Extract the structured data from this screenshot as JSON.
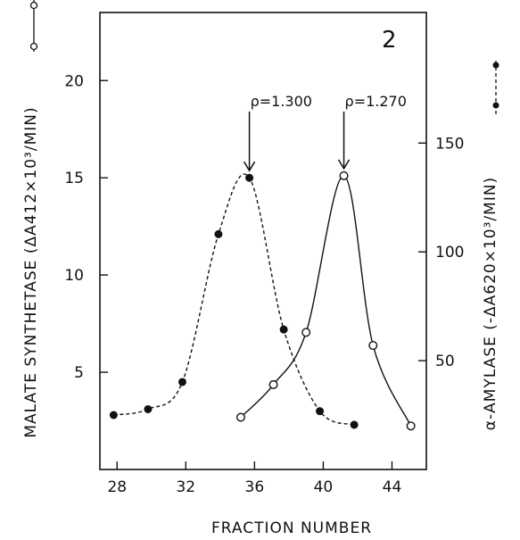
{
  "chart_data": {
    "type": "line",
    "panel_label": "2",
    "xlabel": "FRACTION NUMBER",
    "y_left_label": "MALATE SYNTHETASE (ΔA412×10³/MIN)",
    "y_right_label": "α-AMYLASE (-ΔA620×10³/MIN)",
    "x_ticks": [
      28,
      32,
      36,
      40,
      44
    ],
    "y_left_ticks": [
      5,
      10,
      15,
      20
    ],
    "y_right_ticks": [
      50,
      100,
      150
    ],
    "xlim": [
      27,
      46
    ],
    "y_left_lim": [
      0,
      23.5
    ],
    "y_right_lim": [
      0,
      210
    ],
    "grid": false,
    "legend": "axis markers",
    "series": [
      {
        "name": "MALATE SYNTHETASE",
        "axis": "left",
        "marker": "filled-circle",
        "line": "dashed",
        "x": [
          27.8,
          29.8,
          31.8,
          33.9,
          35.7,
          37.7,
          39.8,
          41.8
        ],
        "y": [
          2.8,
          3.1,
          4.5,
          12.1,
          15.0,
          7.2,
          3.0,
          2.3
        ]
      },
      {
        "name": "α-AMYLASE",
        "axis": "right",
        "marker": "open-circle",
        "line": "solid",
        "x": [
          35.2,
          37.1,
          39.0,
          41.2,
          42.9,
          45.1
        ],
        "y": [
          24,
          39,
          63,
          135,
          57,
          20
        ]
      }
    ],
    "annotations": [
      {
        "text": "ρ=1.300",
        "x": 35.7,
        "axis": "left",
        "target_y": 15.0
      },
      {
        "text": "ρ=1.270",
        "x": 41.2,
        "axis": "right",
        "target_y": 135
      }
    ]
  }
}
